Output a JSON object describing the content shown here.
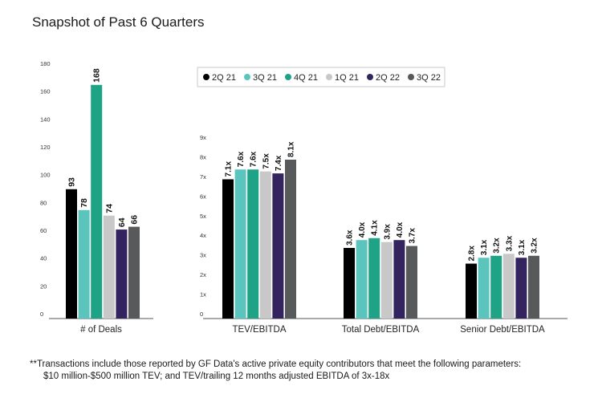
{
  "title": "Snapshot of Past 6 Quarters",
  "footnote": {
    "line1": "**Transactions include those reported by GF Data's active private equity contributors that meet the following parameters:",
    "line2": "$10 million-$500 million TEV; and TEV/trailing 12 months adjusted EBITDA of 3x-18x"
  },
  "colors": {
    "2Q 21": "#000000",
    "3Q 21": "#5bc5bd",
    "4Q 21": "#1fa386",
    "1Q 21": "#c8c8c8",
    "2Q 22": "#33245f",
    "3Q 22": "#58595b"
  },
  "chart_data": [
    {
      "type": "bar",
      "categories": [
        "# of Deals"
      ],
      "series": [
        {
          "name": "2Q 21",
          "values": [
            93
          ],
          "labels": [
            "93"
          ]
        },
        {
          "name": "3Q 21",
          "values": [
            78
          ],
          "labels": [
            "78"
          ]
        },
        {
          "name": "4Q 21",
          "values": [
            168
          ],
          "labels": [
            "168"
          ]
        },
        {
          "name": "1Q 21",
          "values": [
            74
          ],
          "labels": [
            "74"
          ]
        },
        {
          "name": "2Q 22",
          "values": [
            64
          ],
          "labels": [
            "64"
          ]
        },
        {
          "name": "3Q 22",
          "values": [
            66
          ],
          "labels": [
            "66"
          ]
        }
      ],
      "yticks": [
        "0",
        "20",
        "40",
        "60",
        "80",
        "100",
        "120",
        "140",
        "160",
        "180"
      ],
      "ylim": [
        0,
        180
      ],
      "grid": false
    },
    {
      "type": "bar",
      "categories": [
        "TEV/EBITDA",
        "Total Debt/EBITDA",
        "Senior Debt/EBITDA"
      ],
      "series": [
        {
          "name": "2Q 21",
          "values": [
            7.1,
            3.6,
            2.8
          ],
          "labels": [
            "7.1x",
            "3.6x",
            "2.8x"
          ]
        },
        {
          "name": "3Q 21",
          "values": [
            7.6,
            4.0,
            3.1
          ],
          "labels": [
            "7.6x",
            "4.0x",
            "3.1x"
          ]
        },
        {
          "name": "4Q 21",
          "values": [
            7.6,
            4.1,
            3.2
          ],
          "labels": [
            "7.6x",
            "4.1x",
            "3.2x"
          ]
        },
        {
          "name": "1Q 21",
          "values": [
            7.5,
            3.9,
            3.3
          ],
          "labels": [
            "7.5x",
            "3.9x",
            "3.3x"
          ]
        },
        {
          "name": "2Q 22",
          "values": [
            7.4,
            4.0,
            3.1
          ],
          "labels": [
            "7.4x",
            "4.0x",
            "3.1x"
          ]
        },
        {
          "name": "3Q 22",
          "values": [
            8.1,
            3.7,
            3.2
          ],
          "labels": [
            "8.1x",
            "3.7x",
            "3.2x"
          ]
        }
      ],
      "yticks": [
        "0",
        "1x",
        "2x",
        "3x",
        "4x",
        "5x",
        "6x",
        "7x",
        "8x",
        "9x"
      ],
      "ylim": [
        0,
        9
      ],
      "legend": [
        "2Q 21",
        "3Q 21",
        "4Q 21",
        "1Q 21",
        "2Q 22",
        "3Q 22"
      ],
      "legend_position": "top",
      "grid": false
    }
  ]
}
